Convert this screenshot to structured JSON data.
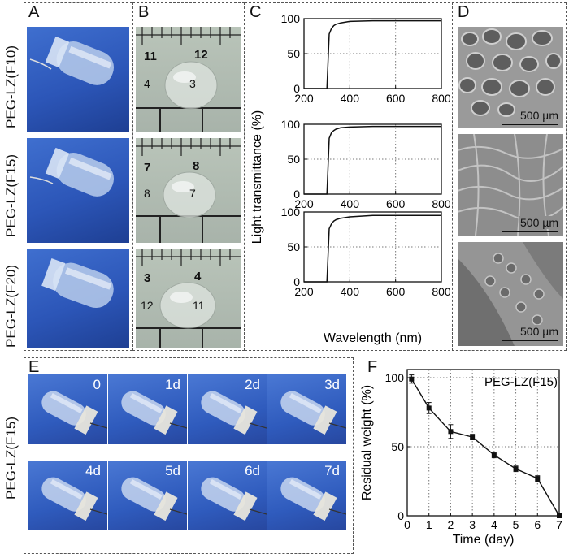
{
  "panels": {
    "A": "A",
    "B": "B",
    "C": "C",
    "D": "D",
    "E": "E",
    "F": "F"
  },
  "row_labels": [
    "PEG-LZ(F10)",
    "PEG-LZ(F15)",
    "PEG-LZ(F20)"
  ],
  "ruler_numbers": [
    {
      "top_left": "11",
      "top_right": "12",
      "bottom_left": "4",
      "bottom_right": "3"
    },
    {
      "top_left": "7",
      "top_right": "8",
      "bottom_left": "8",
      "bottom_right": "7"
    },
    {
      "top_left": "3",
      "top_right": "4",
      "bottom_left": "12",
      "bottom_right": "11"
    }
  ],
  "sem_scale": "500 µm",
  "panel_e": {
    "row_label": "PEG-LZ(F15)",
    "days": [
      "0",
      "1d",
      "2d",
      "3d",
      "4d",
      "5d",
      "6d",
      "7d"
    ]
  },
  "chart_data": [
    {
      "type": "line",
      "panel": "C",
      "ylabel": "Light transmittance (%)",
      "xlabel": "Wavelength (nm)",
      "xlim": [
        200,
        800
      ],
      "ylim": [
        0,
        100
      ],
      "xticks": [
        "200",
        "400",
        "600",
        "800"
      ],
      "yticks": [
        "0",
        "50",
        "100"
      ],
      "grid": "dotted",
      "series": [
        {
          "x": [
            200,
            290,
            300,
            310,
            320,
            330,
            340,
            360,
            400,
            500,
            600,
            800
          ],
          "y": [
            0,
            0,
            0,
            78,
            86,
            90,
            92,
            94,
            96,
            97,
            97,
            97
          ]
        },
        {
          "x": [
            200,
            290,
            300,
            310,
            320,
            330,
            340,
            360,
            400,
            500,
            600,
            800
          ],
          "y": [
            0,
            0,
            0,
            80,
            88,
            91,
            93,
            95,
            96,
            97,
            97,
            97
          ]
        },
        {
          "x": [
            200,
            290,
            300,
            310,
            320,
            330,
            340,
            360,
            400,
            500,
            600,
            800
          ],
          "y": [
            0,
            0,
            0,
            76,
            83,
            87,
            89,
            91,
            93,
            95,
            95,
            95
          ]
        }
      ]
    },
    {
      "type": "line",
      "panel": "F",
      "annotation": "PEG-LZ(F15)",
      "xlabel": "Time (day)",
      "ylabel": "Residual weight (%)",
      "xlim": [
        0,
        7
      ],
      "ylim": [
        0,
        100
      ],
      "xticks": [
        "0",
        "1",
        "2",
        "3",
        "4",
        "5",
        "6",
        "7"
      ],
      "yticks": [
        "0",
        "50",
        "100"
      ],
      "grid": "dotted",
      "x": [
        0.2,
        1,
        2,
        3,
        4,
        5,
        6,
        7
      ],
      "values": [
        99,
        78,
        61,
        57,
        44,
        34,
        27,
        0
      ],
      "errors": [
        3,
        4,
        5,
        2,
        2,
        2,
        2,
        0
      ]
    }
  ]
}
